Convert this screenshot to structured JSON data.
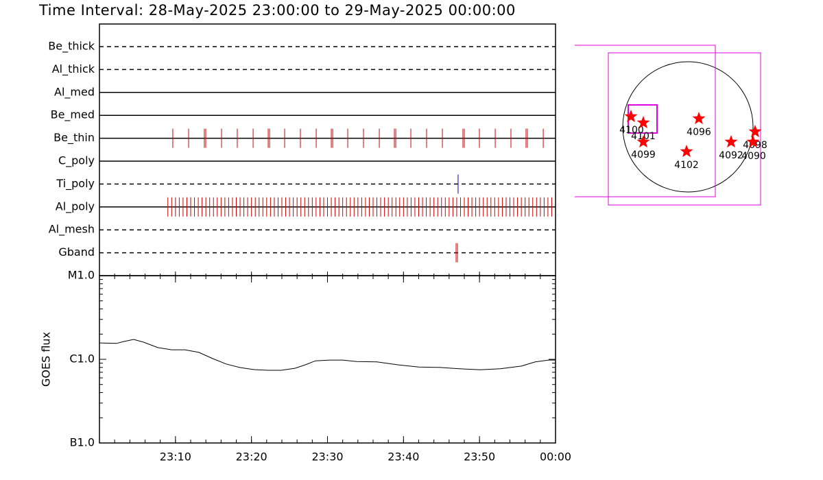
{
  "chart_data": [
    {
      "type": "timeline",
      "title": "Time Interval: 28-May-2025 23:00:00 to 29-May-2025 00:00:00",
      "rows": [
        {
          "label": "Be_thick",
          "style": "dashed",
          "color": "#cc0000",
          "events": []
        },
        {
          "label": "Al_thick",
          "style": "dashed",
          "color": "#cc0000",
          "events": []
        },
        {
          "label": "Al_med",
          "style": "solid",
          "color": "#cc0000",
          "events": []
        },
        {
          "label": "Be_med",
          "style": "solid",
          "color": "#cc0000",
          "events": []
        },
        {
          "label": "Be_thin",
          "style": "solid",
          "color": "#cc0000",
          "events": [
            "23:09:39",
            "23:11:44",
            "23:13:48",
            "23:13:59",
            "23:16:04",
            "23:18:08",
            "23:20:13",
            "23:22:12",
            "23:22:23",
            "23:24:22",
            "23:26:26",
            "23:28:31",
            "23:30:30",
            "23:30:41",
            "23:32:40",
            "23:34:44",
            "23:36:49",
            "23:38:48",
            "23:38:59",
            "23:40:58",
            "23:43:02",
            "23:45:07",
            "23:47:49",
            "23:48:00",
            "23:49:59",
            "23:52:04",
            "23:54:08",
            "23:56:07",
            "23:56:18",
            "23:58:23"
          ]
        },
        {
          "label": "C_poly",
          "style": "solid",
          "color": "#cc0000",
          "events": []
        },
        {
          "label": "Ti_poly",
          "style": "dashed",
          "color": "#0000cc",
          "events": [
            "23:47:11"
          ]
        },
        {
          "label": "Al_poly",
          "style": "solid",
          "color": "#cc0000",
          "events": [
            "23:09:00",
            "23:09:30",
            "23:10:00",
            "23:10:30",
            "23:11:00",
            "23:11:30",
            "23:12:00",
            "23:12:30",
            "23:13:00",
            "23:13:30",
            "23:14:00",
            "23:14:30",
            "23:15:00",
            "23:15:30",
            "23:16:00",
            "23:16:30",
            "23:17:00",
            "23:17:30",
            "23:18:00",
            "23:18:30",
            "23:19:00",
            "23:19:30",
            "23:20:00",
            "23:20:30",
            "23:21:00",
            "23:21:30",
            "23:22:00",
            "23:22:30",
            "23:23:00",
            "23:23:30",
            "23:24:00",
            "23:24:30",
            "23:25:00",
            "23:25:30",
            "23:26:00",
            "23:26:30",
            "23:27:00",
            "23:27:30",
            "23:28:00",
            "23:28:30",
            "23:29:00",
            "23:29:30",
            "23:30:00",
            "23:30:30",
            "23:31:00",
            "23:31:30",
            "23:32:00",
            "23:32:30",
            "23:33:00",
            "23:33:30",
            "23:34:00",
            "23:34:30",
            "23:35:00",
            "23:35:30",
            "23:36:00",
            "23:36:30",
            "23:37:00",
            "23:37:30",
            "23:38:00",
            "23:38:30",
            "23:39:00",
            "23:39:30",
            "23:40:00",
            "23:40:30",
            "23:41:00",
            "23:41:30",
            "23:42:00",
            "23:42:30",
            "23:43:00",
            "23:43:30",
            "23:44:00",
            "23:44:30",
            "23:45:00",
            "23:45:30",
            "23:46:00",
            "23:46:30",
            "23:47:00",
            "23:47:30",
            "23:48:00",
            "23:48:30",
            "23:49:00",
            "23:49:30",
            "23:50:00",
            "23:50:30",
            "23:51:00",
            "23:51:30",
            "23:52:00",
            "23:52:30",
            "23:53:00",
            "23:53:30",
            "23:54:00",
            "23:54:30",
            "23:55:00",
            "23:55:30",
            "23:56:00",
            "23:56:30",
            "23:57:00",
            "23:57:30",
            "23:58:00",
            "23:58:30",
            "23:59:00",
            "23:59:30"
          ]
        },
        {
          "label": "Al_mesh",
          "style": "dashed",
          "color": "#cc0000",
          "events": []
        },
        {
          "label": "Gband",
          "style": "dashed",
          "color": "#cc0000",
          "events": [
            "23:46:55",
            "23:47:06"
          ]
        }
      ]
    },
    {
      "type": "line",
      "y_label": "GOES flux",
      "log_scale": true,
      "color": "#000000",
      "x": [
        "23:00:00",
        "23:02:15",
        "23:03:10",
        "23:04:30",
        "23:05:50",
        "23:07:40",
        "23:09:30",
        "23:11:15",
        "23:13:05",
        "23:14:55",
        "23:16:40",
        "23:18:30",
        "23:20:20",
        "23:22:05",
        "23:23:55",
        "23:25:45",
        "23:27:05",
        "23:28:25",
        "23:30:15",
        "23:32:00",
        "23:33:50",
        "23:36:30",
        "23:39:15",
        "23:42:00",
        "23:44:40",
        "23:47:20",
        "23:50:05",
        "23:52:45",
        "23:55:30",
        "23:57:20",
        "23:59:05",
        "00:00:00"
      ],
      "values": [
        1.57e-06,
        1.55e-06,
        1.63e-06,
        1.73e-06,
        1.6e-06,
        1.38e-06,
        1.3e-06,
        1.3e-06,
        1.21e-06,
        1.02e-06,
        8.8e-07,
        7.98e-07,
        7.54e-07,
        7.4e-07,
        7.4e-07,
        7.82e-07,
        8.6e-07,
        9.6e-07,
        9.8e-07,
        9.8e-07,
        9.4e-07,
        9.3e-07,
        8.6e-07,
        8.1e-07,
        8e-07,
        7.7e-07,
        7.5e-07,
        7.7e-07,
        8.3e-07,
        9.3e-07,
        9.8e-07,
        9.8e-07
      ],
      "xlim": [
        "23:00:00",
        "00:00:00"
      ],
      "xticks": [
        "23:10",
        "23:20",
        "23:30",
        "23:40",
        "23:50",
        "00:00"
      ],
      "ylim": [
        1e-07,
        1e-05
      ],
      "yticks": [
        {
          "value": 1e-05,
          "label": "M1.0"
        },
        {
          "value": 1e-06,
          "label": "C1.0"
        },
        {
          "value": 1e-07,
          "label": "B1.0"
        }
      ]
    },
    {
      "type": "map",
      "color": "#ff0000",
      "labels": [
        "4100",
        "4101",
        "4099",
        "4096",
        "4102",
        "4092",
        "4098",
        "4090"
      ]
    }
  ]
}
